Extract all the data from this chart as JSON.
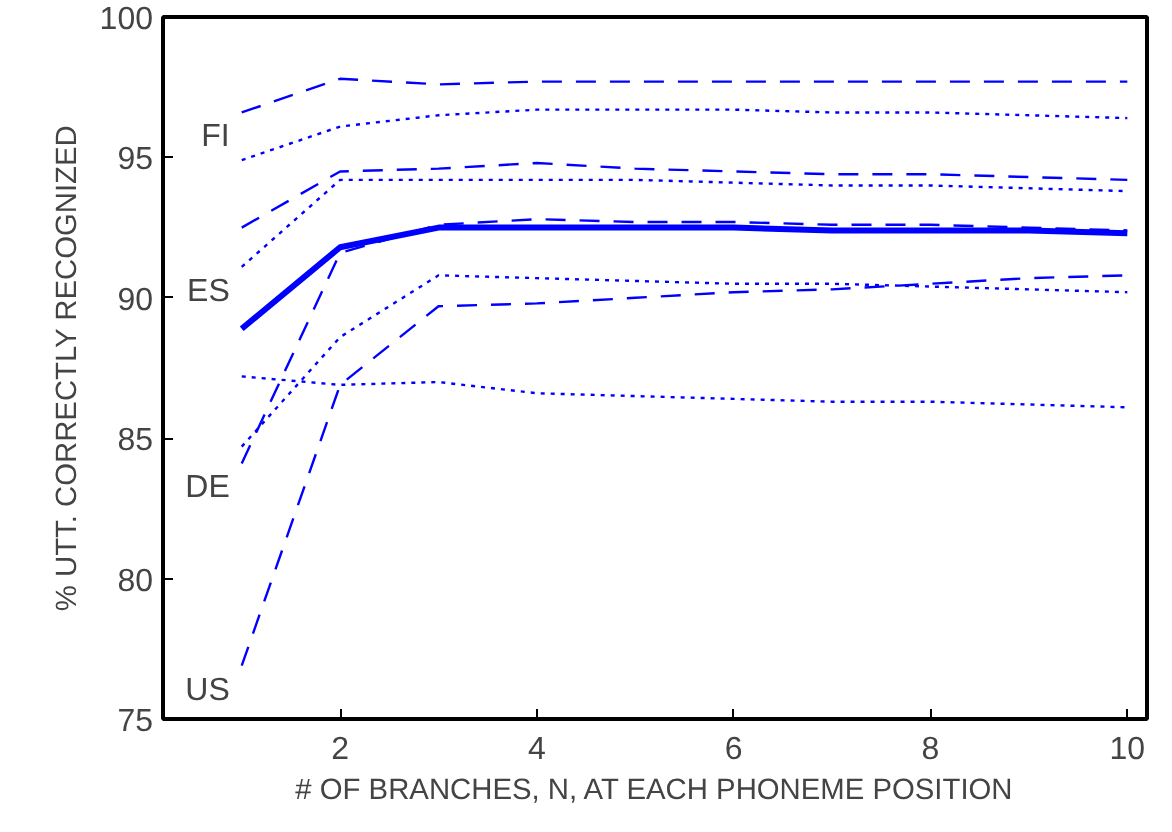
{
  "chart_data": {
    "type": "line",
    "xlabel": "# OF BRANCHES, N, AT EACH PHONEME POSITION",
    "ylabel": "% UTT. CORRECTLY RECOGNIZED",
    "x": [
      1,
      2,
      3,
      4,
      5,
      6,
      7,
      8,
      9,
      10
    ],
    "xlim": [
      0.2,
      10.2
    ],
    "xticks": [
      2,
      4,
      6,
      8,
      10
    ],
    "ylim": [
      75,
      100
    ],
    "yticks": [
      75,
      80,
      85,
      90,
      95,
      100
    ],
    "grid": false,
    "legend": false,
    "marker": "none",
    "series": [
      {
        "name": "FI",
        "color": "#0000ff",
        "line_style": "dashed",
        "values": [
          96.6,
          97.8,
          97.6,
          97.7,
          97.7,
          97.7,
          97.7,
          97.7,
          97.7,
          97.7
        ]
      },
      {
        "color": "#0000ff",
        "line_style": "dotted",
        "values": [
          94.9,
          96.1,
          96.5,
          96.7,
          96.7,
          96.7,
          96.6,
          96.6,
          96.5,
          96.4
        ]
      },
      {
        "color": "#0000ff",
        "line_style": "dashed",
        "values": [
          92.5,
          94.5,
          94.6,
          94.8,
          94.6,
          94.5,
          94.4,
          94.4,
          94.3,
          94.2
        ]
      },
      {
        "name": "ES",
        "color": "#0000ff",
        "line_style": "dotted",
        "values": [
          91.1,
          94.2,
          94.2,
          94.2,
          94.2,
          94.1,
          94.0,
          94.0,
          93.9,
          93.8
        ]
      },
      {
        "name": "DE",
        "color": "#0000ff",
        "line_style": "dashed",
        "values": [
          84.1,
          91.6,
          92.6,
          92.8,
          92.7,
          92.7,
          92.6,
          92.6,
          92.5,
          92.4
        ]
      },
      {
        "color": "#0000ff",
        "line_style": "dotted",
        "values": [
          84.7,
          88.6,
          90.8,
          90.7,
          90.6,
          90.5,
          90.5,
          90.4,
          90.3,
          90.2
        ]
      },
      {
        "name": "US",
        "color": "#0000ff",
        "line_style": "dashed",
        "values": [
          76.9,
          86.9,
          89.7,
          89.8,
          90.0,
          90.2,
          90.3,
          90.5,
          90.7,
          90.8
        ]
      },
      {
        "color": "#0000ff",
        "line_style": "dotted",
        "values": [
          87.2,
          86.9,
          87.0,
          86.6,
          86.5,
          86.4,
          86.3,
          86.3,
          86.2,
          86.1
        ]
      },
      {
        "color": "#0000ff",
        "line_style": "solid",
        "values": [
          88.9,
          91.8,
          92.5,
          92.5,
          92.5,
          92.5,
          92.4,
          92.4,
          92.4,
          92.3
        ]
      }
    ]
  }
}
